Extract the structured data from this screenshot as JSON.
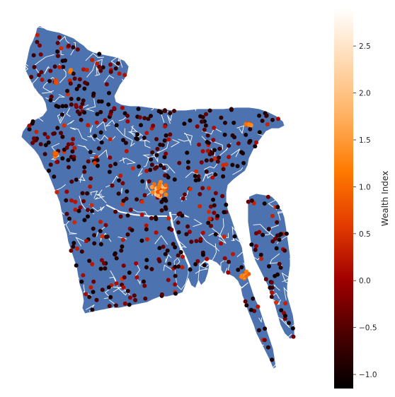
{
  "colorbar": {
    "label": "Wealth Index",
    "min": -1.15,
    "max": 2.9,
    "ticks": [
      {
        "value": -1.0,
        "label": "−1.0"
      },
      {
        "value": -0.5,
        "label": "−0.5"
      },
      {
        "value": 0.0,
        "label": "0.0"
      },
      {
        "value": 0.5,
        "label": "0.5"
      },
      {
        "value": 1.0,
        "label": "1.0"
      },
      {
        "value": 1.5,
        "label": "1.5"
      },
      {
        "value": 2.0,
        "label": "2.0"
      },
      {
        "value": 2.5,
        "label": "2.5"
      }
    ],
    "colormap": "gist_heat",
    "stops": [
      "#000000",
      "#4a0000",
      "#a00000",
      "#e23b00",
      "#ff7a00",
      "#ffb060",
      "#ffd9b0",
      "#ffffff"
    ]
  },
  "map": {
    "region": "Bangladesh",
    "land_color": "#4c72b0",
    "border_color": "#ffffff",
    "point_color_scale": "Wealth Index"
  }
}
